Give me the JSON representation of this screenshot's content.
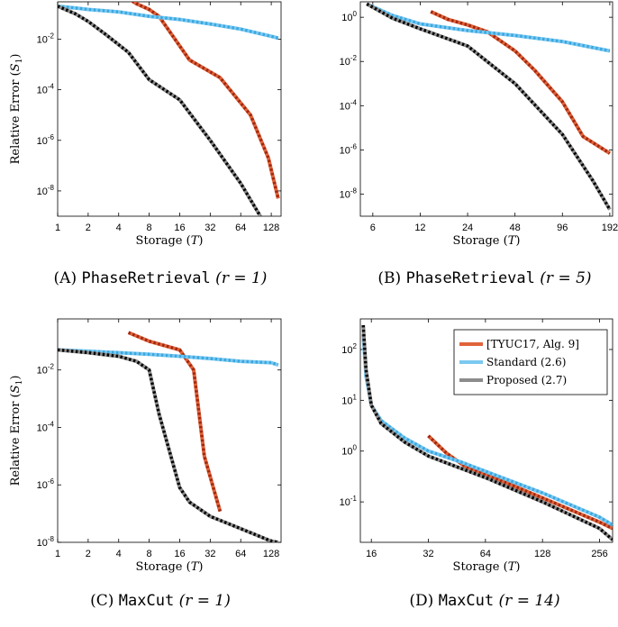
{
  "colors": {
    "tyuc": "#e0633a",
    "tyuc_dot": "#a02810",
    "standard": "#7cc8f0",
    "standard_dot": "#38a8e0",
    "proposed": "#8c8c8c",
    "proposed_dot": "#000000"
  },
  "legend": [
    "[TYUC17, Alg. 9]",
    "Standard (2.6)",
    "Proposed (2.7)"
  ],
  "chart_data": [
    {
      "id": "A",
      "type": "line",
      "xscale": "log2",
      "yscale": "log10",
      "xlim": [
        1,
        160
      ],
      "ylim": [
        1e-09,
        0.3
      ],
      "xticks": [
        1,
        2,
        4,
        8,
        16,
        32,
        64,
        128
      ],
      "xticklabels": [
        "1",
        "2",
        "4",
        "8",
        "16",
        "32",
        "64",
        "128"
      ],
      "yticks": [
        0.01,
        0.0001,
        1e-06,
        1e-08
      ],
      "ytick_exp": [
        "-2",
        "-4",
        "-6",
        "-8"
      ],
      "xlabel": "Storage (",
      "xlabel_var": "T",
      "xlabel_end": ")",
      "ylabel": "Relative Error (",
      "ylabel_var": "S",
      "ylabel_sub": "1",
      "ylabel_end": ")",
      "caption_prefix": "(A) ",
      "caption_code": "PhaseRetrieval",
      "caption_math": " (r = 1)",
      "series": [
        {
          "x": [
            5,
            6,
            8,
            10,
            20,
            40,
            80,
            120,
            150
          ],
          "y": [
            0.4,
            0.25,
            0.15,
            0.08,
            0.0015,
            0.0003,
            1e-05,
            2e-07,
            5e-09
          ]
        },
        {
          "x": [
            1,
            1.5,
            2,
            4,
            8,
            16,
            32,
            64,
            128,
            150
          ],
          "y": [
            0.2,
            0.17,
            0.15,
            0.12,
            0.08,
            0.06,
            0.04,
            0.025,
            0.013,
            0.011
          ]
        },
        {
          "x": [
            1,
            1.5,
            2,
            3,
            5,
            8,
            16,
            32,
            64,
            100
          ],
          "y": [
            0.2,
            0.1,
            0.05,
            0.015,
            0.003,
            0.00025,
            4e-05,
            1e-06,
            2e-08,
            1e-09
          ]
        }
      ]
    },
    {
      "id": "B",
      "type": "line",
      "xscale": "log2",
      "yscale": "log10",
      "xlim": [
        5,
        200
      ],
      "ylim": [
        1e-09,
        5
      ],
      "xticks": [
        6,
        12,
        24,
        48,
        96,
        192
      ],
      "xticklabels": [
        "6",
        "12",
        "24",
        "48",
        "96",
        "192"
      ],
      "yticks": [
        1,
        0.01,
        0.0001,
        1e-06,
        1e-08
      ],
      "ytick_exp": [
        "0",
        "-2",
        "-4",
        "-6",
        "-8"
      ],
      "xlabel": "Storage (",
      "xlabel_var": "T",
      "xlabel_end": ")",
      "caption_prefix": "(B) ",
      "caption_code": "PhaseRetrieval",
      "caption_math": " (r = 5)",
      "series": [
        {
          "x": [
            14,
            18,
            24,
            32,
            48,
            64,
            96,
            130,
            192
          ],
          "y": [
            1.8,
            0.8,
            0.45,
            0.22,
            0.03,
            0.004,
            0.00015,
            4e-06,
            7e-07
          ]
        },
        {
          "x": [
            5.5,
            8,
            12,
            24,
            48,
            96,
            192
          ],
          "y": [
            4,
            1.2,
            0.5,
            0.25,
            0.15,
            0.08,
            0.03
          ]
        },
        {
          "x": [
            5.5,
            8,
            12,
            24,
            48,
            96,
            150,
            192
          ],
          "y": [
            4,
            0.9,
            0.3,
            0.05,
            0.001,
            5e-06,
            4e-08,
            2e-09
          ]
        }
      ]
    },
    {
      "id": "C",
      "type": "line",
      "xscale": "log2",
      "yscale": "log10",
      "xlim": [
        1,
        160
      ],
      "ylim": [
        1e-08,
        0.6
      ],
      "xticks": [
        1,
        2,
        4,
        8,
        16,
        32,
        64,
        128
      ],
      "xticklabels": [
        "1",
        "2",
        "4",
        "8",
        "16",
        "32",
        "64",
        "128"
      ],
      "yticks": [
        0.01,
        0.0001,
        1e-06,
        1e-08
      ],
      "ytick_exp": [
        "-2",
        "-4",
        "-6",
        "-8"
      ],
      "xlabel": "Storage (",
      "xlabel_var": "T",
      "xlabel_end": ")",
      "ylabel": "Relative Error (",
      "ylabel_var": "S",
      "ylabel_sub": "1",
      "ylabel_end": ")",
      "caption_prefix": "(C) ",
      "caption_code": "MaxCut",
      "caption_math": " (r = 1)",
      "series": [
        {
          "x": [
            5,
            8,
            16,
            22,
            28,
            40
          ],
          "y": [
            0.2,
            0.1,
            0.05,
            0.01,
            1e-05,
            1.2e-07
          ]
        },
        {
          "x": [
            1,
            2,
            4,
            8,
            16,
            32,
            64,
            128,
            150
          ],
          "y": [
            0.05,
            0.045,
            0.04,
            0.035,
            0.03,
            0.025,
            0.02,
            0.018,
            0.015
          ]
        },
        {
          "x": [
            1,
            2,
            4,
            6,
            8,
            10,
            12,
            16,
            20,
            32,
            64,
            128,
            150
          ],
          "y": [
            0.05,
            0.04,
            0.03,
            0.02,
            0.01,
            0.0003,
            3e-05,
            8e-07,
            2.5e-07,
            8e-08,
            3e-08,
            1.1e-08,
            1e-08
          ]
        }
      ]
    },
    {
      "id": "D",
      "type": "line",
      "xscale": "log2",
      "yscale": "log10",
      "xlim": [
        14,
        300
      ],
      "ylim": [
        0.016,
        400
      ],
      "xticks": [
        16,
        32,
        64,
        128,
        256
      ],
      "xticklabels": [
        "16",
        "32",
        "64",
        "128",
        "256"
      ],
      "yticks": [
        100,
        10,
        1,
        0.1
      ],
      "ytick_exp": [
        "2",
        "1",
        "0",
        "-1"
      ],
      "xlabel": "Storage (",
      "xlabel_var": "T",
      "xlabel_end": ")",
      "caption_prefix": "(D) ",
      "caption_code": "MaxCut",
      "caption_math": " (r = 14)",
      "legend": true,
      "series": [
        {
          "x": [
            32,
            40,
            50,
            64,
            128,
            256,
            300
          ],
          "y": [
            2,
            0.9,
            0.5,
            0.35,
            0.12,
            0.04,
            0.03
          ]
        },
        {
          "x": [
            14.5,
            15,
            16,
            18,
            24,
            32,
            48,
            64,
            128,
            256,
            300
          ],
          "y": [
            200,
            30,
            8,
            4,
            1.8,
            1,
            0.6,
            0.4,
            0.15,
            0.05,
            0.035
          ]
        },
        {
          "x": [
            14.5,
            15,
            16,
            18,
            24,
            32,
            48,
            64,
            128,
            256,
            300
          ],
          "y": [
            300,
            40,
            8,
            3.5,
            1.5,
            0.8,
            0.45,
            0.3,
            0.1,
            0.03,
            0.018
          ]
        }
      ]
    }
  ]
}
